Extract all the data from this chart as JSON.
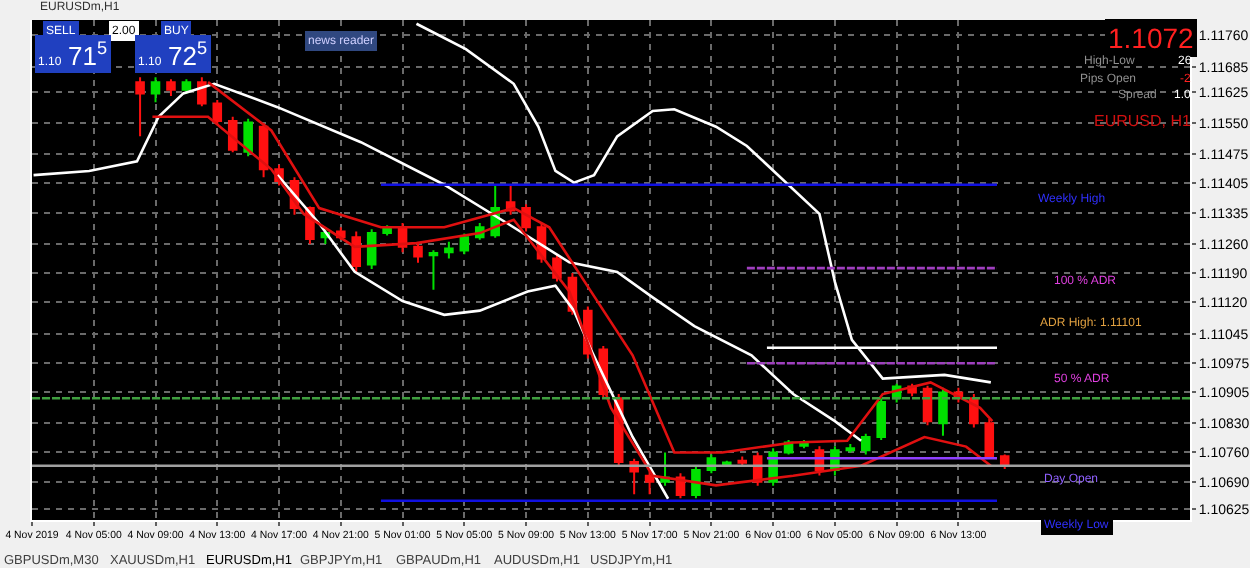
{
  "chart_data": {
    "type": "candlestick",
    "x": [
      "2019-11-04T08:00",
      "2019-11-04T09:00",
      "2019-11-04T10:00",
      "2019-11-04T11:00",
      "2019-11-04T12:00",
      "2019-11-04T13:00",
      "2019-11-04T14:00",
      "2019-11-04T15:00",
      "2019-11-04T16:00",
      "2019-11-04T17:00",
      "2019-11-04T18:00",
      "2019-11-04T19:00",
      "2019-11-04T20:00",
      "2019-11-04T21:00",
      "2019-11-04T22:00",
      "2019-11-04T23:00",
      "2019-11-05T00:00",
      "2019-11-05T01:00",
      "2019-11-05T02:00",
      "2019-11-05T03:00",
      "2019-11-05T04:00",
      "2019-11-05T05:00",
      "2019-11-05T06:00",
      "2019-11-05T07:00",
      "2019-11-05T08:00",
      "2019-11-05T09:00",
      "2019-11-05T10:00",
      "2019-11-05T11:00",
      "2019-11-05T12:00",
      "2019-11-05T13:00",
      "2019-11-05T14:00",
      "2019-11-05T15:00",
      "2019-11-05T16:00",
      "2019-11-05T17:00",
      "2019-11-05T18:00",
      "2019-11-05T19:00",
      "2019-11-05T20:00",
      "2019-11-05T21:00",
      "2019-11-05T22:00",
      "2019-11-05T23:00",
      "2019-11-06T00:00",
      "2019-11-06T01:00",
      "2019-11-06T02:00",
      "2019-11-06T03:00",
      "2019-11-06T04:00",
      "2019-11-06T05:00",
      "2019-11-06T06:00",
      "2019-11-06T07:00",
      "2019-11-06T08:00",
      "2019-11-06T09:00",
      "2019-11-06T10:00",
      "2019-11-06T11:00",
      "2019-11-06T12:00",
      "2019-11-06T13:00",
      "2019-11-06T14:00",
      "2019-11-06T15:00",
      "2019-11-06T16:00"
    ],
    "ohlc": [
      [
        1.11648,
        1.1166,
        1.11518,
        1.11621
      ],
      [
        1.11621,
        1.1166,
        1.116,
        1.11648
      ],
      [
        1.11648,
        1.11655,
        1.11615,
        1.1163
      ],
      [
        1.1163,
        1.11655,
        1.1162,
        1.11648
      ],
      [
        1.11648,
        1.1166,
        1.1159,
        1.11597
      ],
      [
        1.11597,
        1.11605,
        1.11545,
        1.11555
      ],
      [
        1.11555,
        1.11565,
        1.1148,
        1.11486
      ],
      [
        1.11481,
        1.1156,
        1.1147,
        1.11551
      ],
      [
        1.11541,
        1.1155,
        1.1142,
        1.11439
      ],
      [
        1.11439,
        1.1145,
        1.114,
        1.11411
      ],
      [
        1.11411,
        1.1142,
        1.1133,
        1.11346
      ],
      [
        1.11346,
        1.1135,
        1.1126,
        1.11272
      ],
      [
        1.11276,
        1.113,
        1.1126,
        1.11286
      ],
      [
        1.1129,
        1.113,
        1.1127,
        1.11276
      ],
      [
        1.11276,
        1.1129,
        1.1119,
        1.11207
      ],
      [
        1.11211,
        1.11295,
        1.112,
        1.11286
      ],
      [
        1.11286,
        1.11305,
        1.1128,
        1.113
      ],
      [
        1.113,
        1.1131,
        1.1124,
        1.11253
      ],
      [
        1.11253,
        1.1126,
        1.11215,
        1.1123
      ],
      [
        1.11233,
        1.11245,
        1.1115,
        1.11238
      ],
      [
        1.1124,
        1.11265,
        1.11225,
        1.11249
      ],
      [
        1.11244,
        1.11285,
        1.11235,
        1.11276
      ],
      [
        1.11276,
        1.1131,
        1.1127,
        1.113
      ],
      [
        1.11281,
        1.114,
        1.11275,
        1.11346
      ],
      [
        1.1136,
        1.114,
        1.1133,
        1.1134
      ],
      [
        1.11346,
        1.11355,
        1.1129,
        1.113
      ],
      [
        1.113,
        1.1131,
        1.11215,
        1.11225
      ],
      [
        1.11225,
        1.11235,
        1.1117,
        1.11179
      ],
      [
        1.11179,
        1.1119,
        1.1109,
        1.111
      ],
      [
        1.111,
        1.1111,
        1.10985,
        1.10997
      ],
      [
        1.11007,
        1.11015,
        1.1089,
        1.109
      ],
      [
        1.1089,
        1.109,
        1.10725,
        1.10737
      ],
      [
        1.10737,
        1.10745,
        1.1066,
        1.10714
      ],
      [
        1.10704,
        1.10715,
        1.1066,
        1.1069
      ],
      [
        1.1069,
        1.1076,
        1.1068,
        1.107
      ],
      [
        1.107,
        1.1071,
        1.1065,
        1.10658
      ],
      [
        1.10658,
        1.10725,
        1.1065,
        1.10718
      ],
      [
        1.10718,
        1.10755,
        1.1071,
        1.10746
      ],
      [
        1.10732,
        1.1074,
        1.10725,
        1.10736
      ],
      [
        1.1074,
        1.1075,
        1.10725,
        1.10735
      ],
      [
        1.10751,
        1.1076,
        1.1068,
        1.1069
      ],
      [
        1.1069,
        1.1077,
        1.1068,
        1.1076
      ],
      [
        1.1076,
        1.1079,
        1.10755,
        1.10784
      ],
      [
        1.10776,
        1.1079,
        1.1077,
        1.10784
      ],
      [
        1.10765,
        1.10775,
        1.10705,
        1.10718
      ],
      [
        1.10718,
        1.10775,
        1.10705,
        1.10765
      ],
      [
        1.10765,
        1.1078,
        1.1076,
        1.1077
      ],
      [
        1.10765,
        1.10805,
        1.10755,
        1.10797
      ],
      [
        1.10797,
        1.1089,
        1.1079,
        1.10881
      ],
      [
        1.1089,
        1.10925,
        1.1088,
        1.10918
      ],
      [
        1.10918,
        1.10925,
        1.10895,
        1.10904
      ],
      [
        1.10913,
        1.1092,
        1.10825,
        1.10835
      ],
      [
        1.1083,
        1.10915,
        1.108,
        1.10904
      ],
      [
        1.10904,
        1.10915,
        1.1088,
        1.1089
      ],
      [
        1.1089,
        1.109,
        1.1082,
        1.1083
      ],
      [
        1.1083,
        1.1084,
        1.10745,
        1.10751
      ],
      [
        1.10751,
        1.10755,
        1.1072,
        1.10728
      ]
    ],
    "series": [
      {
        "type": "line",
        "color": "#ffffff",
        "x": [
          "2019-11-05T01:54",
          "2019-11-05T05:06",
          "2019-11-05T08:12",
          "2019-11-05T09:48",
          "2019-11-05T10:54",
          "2019-11-05T12:06",
          "2019-11-05T13:24",
          "2019-11-05T14:54",
          "2019-11-05T17:12",
          "2019-11-05T18:36",
          "2019-11-05T21:18",
          "2019-11-05T23:18",
          "2019-11-06T04:00",
          "2019-11-06T05:00",
          "2019-11-06T06:06",
          "2019-11-06T08:06",
          "2019-11-06T12:06",
          "2019-11-06T15:06"
        ],
        "values": [
          1.11788,
          1.11727,
          1.11644,
          1.11541,
          1.11435,
          1.11407,
          1.11425,
          1.11518,
          1.11579,
          1.11583,
          1.11541,
          1.11495,
          1.11332,
          1.11169,
          1.1103,
          1.10937,
          1.10946,
          1.10928
        ]
      },
      {
        "type": "line",
        "color": "#ffffff",
        "x": [
          "2019-11-04T01:06",
          "2019-11-04T04:42",
          "2019-11-04T07:48",
          "2019-11-04T09:12",
          "2019-11-04T10:48",
          "2019-11-04T12:48",
          "2019-11-04T16:54",
          "2019-11-04T22:18",
          "2019-11-05T03:42",
          "2019-11-05T07:48",
          "2019-11-05T11:48",
          "2019-11-05T14:54",
          "2019-11-05T17:12",
          "2019-11-05T19:54",
          "2019-11-05T23:36",
          "2019-11-06T02:18",
          "2019-11-06T05:00",
          "2019-11-06T06:42"
        ],
        "values": [
          1.11425,
          1.11435,
          1.11458,
          1.11565,
          1.11621,
          1.11644,
          1.11588,
          1.11504,
          1.11402,
          1.11309,
          1.11216,
          1.11193,
          1.11132,
          1.11063,
          1.10993,
          1.109,
          1.10835,
          1.10788
        ]
      },
      {
        "type": "line",
        "color": "#ffffff",
        "x": [
          "2019-11-04T16:54",
          "2019-11-04T19:36",
          "2019-11-04T21:54",
          "2019-11-05T01:00",
          "2019-11-05T03:42",
          "2019-11-05T06:00",
          "2019-11-05T09:06",
          "2019-11-05T10:54",
          "2019-11-05T12:06",
          "2019-11-05T13:12",
          "2019-11-05T15:54",
          "2019-11-05T18:12"
        ],
        "values": [
          1.11425,
          1.11309,
          1.11193,
          1.11123,
          1.1109,
          1.111,
          1.11146,
          1.1116,
          1.111,
          1.11007,
          1.10797,
          1.10649
        ]
      },
      {
        "type": "line",
        "color": "#e01010",
        "x": [
          "2019-11-04T12:24",
          "2019-11-04T16:30",
          "2019-11-04T19:36",
          "2019-11-04T23:36",
          "2019-11-05T03:42",
          "2019-11-05T08:12",
          "2019-11-05T10:30",
          "2019-11-05T12:48",
          "2019-11-05T15:54",
          "2019-11-05T18:36",
          "2019-11-05T21:42",
          "2019-11-06T02:18",
          "2019-11-06T05:48",
          "2019-11-06T08:06",
          "2019-11-06T11:12",
          "2019-11-06T14:24",
          "2019-11-06T15:12"
        ],
        "values": [
          1.11648,
          1.11532,
          1.11346,
          1.113,
          1.113,
          1.11346,
          1.113,
          1.11169,
          1.10993,
          1.1076,
          1.1076,
          1.10784,
          1.10788,
          1.109,
          1.10928,
          1.10867,
          1.10835
        ]
      },
      {
        "type": "line",
        "color": "#e01010",
        "x": [
          "2019-11-04T08:48",
          "2019-11-04T12:24",
          "2019-11-04T16:30",
          "2019-11-04T18:36",
          "2019-11-04T21:54",
          "2019-11-05T01:54",
          "2019-11-05T06:00",
          "2019-11-05T08:12",
          "2019-11-05T11:48",
          "2019-11-05T14:30",
          "2019-11-05T17:12",
          "2019-11-05T21:18",
          "2019-11-06T02:18",
          "2019-11-06T06:42",
          "2019-11-06T10:48",
          "2019-11-06T13:30",
          "2019-11-06T15:06"
        ],
        "values": [
          1.11565,
          1.11565,
          1.11439,
          1.11332,
          1.11253,
          1.11262,
          1.11286,
          1.11318,
          1.11146,
          1.10867,
          1.10704,
          1.10681,
          1.10704,
          1.10728,
          1.10797,
          1.10774,
          1.10728
        ]
      },
      {
        "type": "line",
        "color": "#1010e0",
        "x": [
          "2019-11-04T23:36",
          "2019-11-06T15:30"
        ],
        "values": [
          1.11402,
          1.11402
        ]
      },
      {
        "type": "line",
        "color": "#1010e0",
        "x": [
          "2019-11-04T23:36",
          "2019-11-06T15:30"
        ],
        "values": [
          1.10644,
          1.10644
        ]
      },
      {
        "type": "line",
        "color": "#a040c0",
        "line_style": "dashed",
        "x": [
          "2019-11-05T23:18",
          "2019-11-06T15:30"
        ],
        "values": [
          1.11202,
          1.11202
        ]
      },
      {
        "type": "line",
        "color": "#ffffff",
        "x": [
          "2019-11-06T00:36",
          "2019-11-06T15:30"
        ],
        "values": [
          1.11011,
          1.11011
        ]
      },
      {
        "type": "line",
        "color": "#a040c0",
        "line_style": "dashed",
        "x": [
          "2019-11-05T23:18",
          "2019-11-06T15:30"
        ],
        "values": [
          1.10974,
          1.10974
        ]
      },
      {
        "type": "line",
        "color": "#9040ff",
        "x": [
          "2019-11-06T00:36",
          "2019-11-06T15:30"
        ],
        "values": [
          1.10746,
          1.10746
        ]
      },
      {
        "type": "line",
        "color": "#40a040",
        "line_style": "dashed",
        "x": [
          "2019-11-04T01:00",
          "2019-11-07T04:00"
        ],
        "values": [
          1.1089,
          1.1089
        ]
      },
      {
        "type": "line",
        "color": "#a0a0a0",
        "x": [
          "2019-11-04T01:00",
          "2019-11-07T04:00"
        ],
        "values": [
          1.10728,
          1.10728
        ]
      }
    ],
    "xlim": [
      "2019-11-04T01:00",
      "2019-11-07T04:00"
    ],
    "ylim": [
      1.10598,
      1.11797
    ],
    "xticks": [
      {
        "value": "2019-11-04T01:00",
        "label": "4 Nov 2019"
      },
      {
        "value": "2019-11-04T05:00",
        "label": "4 Nov 05:00"
      },
      {
        "value": "2019-11-04T09:00",
        "label": "4 Nov 09:00"
      },
      {
        "value": "2019-11-04T13:00",
        "label": "4 Nov 13:00"
      },
      {
        "value": "2019-11-04T17:00",
        "label": "4 Nov 17:00"
      },
      {
        "value": "2019-11-04T21:00",
        "label": "4 Nov 21:00"
      },
      {
        "value": "2019-11-05T01:00",
        "label": "5 Nov 01:00"
      },
      {
        "value": "2019-11-05T05:00",
        "label": "5 Nov 05:00"
      },
      {
        "value": "2019-11-05T09:00",
        "label": "5 Nov 09:00"
      },
      {
        "value": "2019-11-05T13:00",
        "label": "5 Nov 13:00"
      },
      {
        "value": "2019-11-05T17:00",
        "label": "5 Nov 17:00"
      },
      {
        "value": "2019-11-05T21:00",
        "label": "5 Nov 21:00"
      },
      {
        "value": "2019-11-06T01:00",
        "label": "6 Nov 01:00"
      },
      {
        "value": "2019-11-06T05:00",
        "label": "6 Nov 05:00"
      },
      {
        "value": "2019-11-06T09:00",
        "label": "6 Nov 09:00"
      },
      {
        "value": "2019-11-06T13:00",
        "label": "6 Nov 13:00"
      }
    ],
    "yticks": [
      {
        "value": 1.1176,
        "label": "1.11760"
      },
      {
        "value": 1.11685,
        "label": "1.11685"
      },
      {
        "value": 1.11625,
        "label": "1.11625"
      },
      {
        "value": 1.1155,
        "label": "1.11550"
      },
      {
        "value": 1.11475,
        "label": "1.11475"
      },
      {
        "value": 1.11405,
        "label": "1.11405"
      },
      {
        "value": 1.11335,
        "label": "1.11335"
      },
      {
        "value": 1.1126,
        "label": "1.11260"
      },
      {
        "value": 1.1119,
        "label": "1.11190"
      },
      {
        "value": 1.1112,
        "label": "1.11120"
      },
      {
        "value": 1.11045,
        "label": "1.11045"
      },
      {
        "value": 1.10975,
        "label": "1.10975"
      },
      {
        "value": 1.10905,
        "label": "1.10905"
      },
      {
        "value": 1.1083,
        "label": "1.10830"
      },
      {
        "value": 1.1076,
        "label": "1.10760"
      },
      {
        "value": 1.1069,
        "label": "1.10690"
      },
      {
        "value": 1.10625,
        "label": "1.10625"
      }
    ],
    "grid": true,
    "annotations": [
      "EURUSDm,H1",
      "SELL",
      "2.00",
      "BUY",
      "1.10 71$^{5}$",
      "1.10 72$^{5}$",
      "news reader",
      "1.1072",
      "High-Low",
      "26",
      "Pips Open",
      "-2",
      "Spread",
      "1.0",
      "EURUSD, H1",
      "Weekly High",
      "100 % ADR",
      "ADR High: 1.11101",
      "50 % ADR",
      "Day Open",
      "Weekly Low",
      "GBPUSDm,M30",
      "XAUUSDm,H1",
      "EURUSDm,H1",
      "GBPJPYm,H1",
      "GBPAUDm,H1",
      "AUDUSDm,H1",
      "USDJPYm,H1"
    ]
  }
}
